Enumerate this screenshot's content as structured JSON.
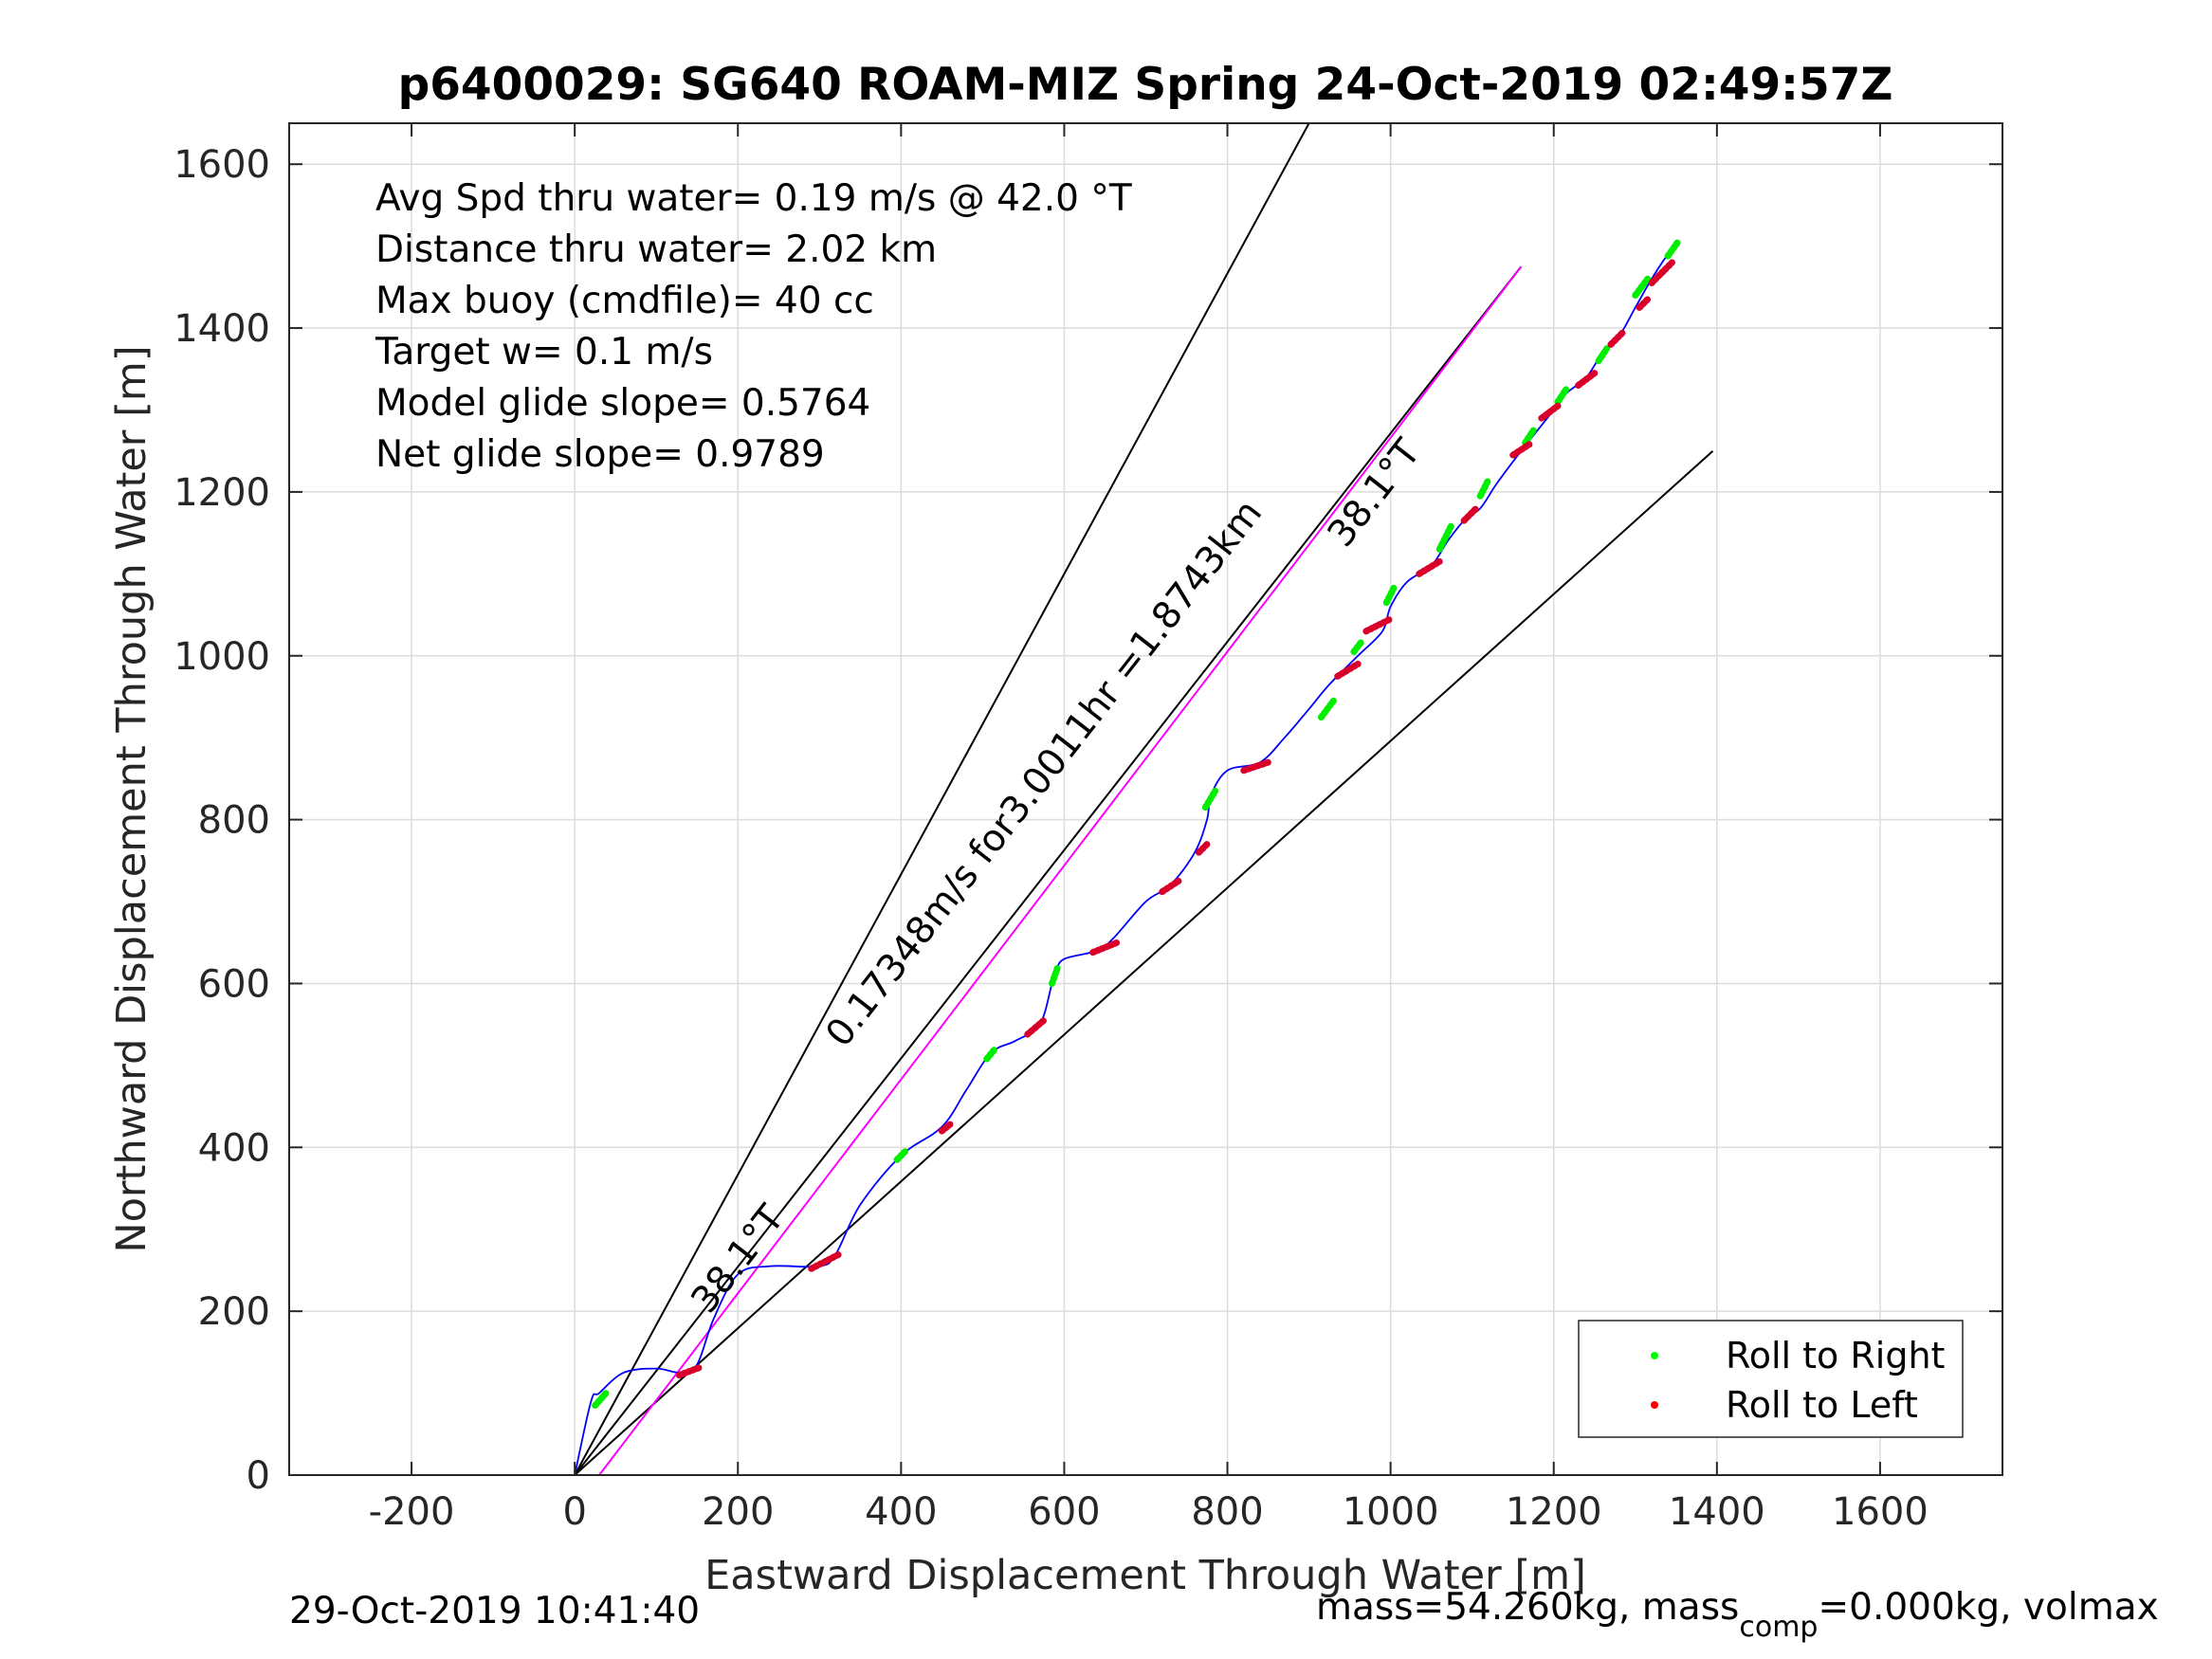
{
  "chart_data": {
    "type": "line",
    "title": "p6400029: SG640 ROAM-MIZ Spring 24-Oct-2019 02:49:57Z",
    "xlabel": "Eastward Displacement Through Water [m]",
    "ylabel": "Northward Displacement Through Water [m]",
    "xlim": [
      -350,
      1750
    ],
    "ylim": [
      0,
      1650
    ],
    "xticks": [
      -200,
      0,
      200,
      400,
      600,
      800,
      1000,
      1200,
      1400,
      1600
    ],
    "yticks": [
      0,
      200,
      400,
      600,
      800,
      1000,
      1200,
      1400,
      1600
    ],
    "grid": true,
    "legend_position": "bottom-right",
    "info_lines": [
      "Avg Spd thru water=  0.19 m/s @  42.0 °T",
      "Distance thru water=  2.02 km",
      "Max buoy (cmdfile)= 40 cc",
      "Target w= 0.1 m/s",
      "Model glide slope= 0.5764",
      "Net glide slope= 0.9789"
    ],
    "reference_lines": [
      {
        "name": "upper-bound",
        "color": "#000000",
        "x": [
          0,
          900
        ],
        "y": [
          0,
          1650
        ]
      },
      {
        "name": "lower-bound",
        "color": "#000000",
        "x": [
          0,
          1395
        ],
        "y": [
          0,
          1250
        ]
      },
      {
        "name": "heading-line",
        "color": "#000000",
        "x": [
          0,
          1160
        ],
        "y": [
          0,
          1475
        ]
      },
      {
        "name": "magenta-track",
        "color": "#ff00ff",
        "x": [
          30,
          1160
        ],
        "y": [
          0,
          1475
        ]
      }
    ],
    "annotations": [
      {
        "text": "38.1°T",
        "x": 945,
        "y": 1130,
        "angle": 52
      },
      {
        "text": "0.17348m/s for3.0011hr =1.8743km",
        "x": 330,
        "y": 520,
        "angle": 52
      },
      {
        "text": "38.1°T",
        "x": 165,
        "y": 195,
        "angle": 52
      }
    ],
    "series": [
      {
        "name": "",
        "color": "#0000ff",
        "x": [
          0,
          20,
          30,
          60,
          100,
          130,
          150,
          170,
          200,
          240,
          300,
          320,
          350,
          400,
          450,
          480,
          510,
          540,
          570,
          585,
          590,
          600,
          640,
          660,
          700,
          730,
          760,
          775,
          780,
          800,
          840,
          870,
          900,
          925,
          960,
          990,
          1000,
          1020,
          1050,
          1070,
          1090,
          1110,
          1130,
          1160,
          1180,
          1200,
          1215,
          1240,
          1260,
          1280,
          1300,
          1320,
          1340,
          1355
        ],
        "y": [
          0,
          90,
          100,
          125,
          130,
          125,
          135,
          190,
          245,
          255,
          255,
          270,
          330,
          390,
          425,
          470,
          515,
          530,
          550,
          600,
          615,
          630,
          640,
          655,
          700,
          720,
          760,
          800,
          830,
          860,
          870,
          900,
          935,
          965,
          1000,
          1030,
          1060,
          1090,
          1110,
          1140,
          1165,
          1180,
          1210,
          1250,
          1275,
          1300,
          1320,
          1340,
          1370,
          1390,
          1425,
          1460,
          1490,
          1505
        ]
      }
    ],
    "legend": [
      {
        "label": "Roll to Right",
        "color": "#00ff00"
      },
      {
        "label": "Roll to Left",
        "color": "#ff0000"
      }
    ],
    "roll_right_segments": [
      [
        [
          25,
          85
        ],
        [
          40,
          102
        ]
      ],
      [
        [
          395,
          385
        ],
        [
          405,
          395
        ]
      ],
      [
        [
          505,
          508
        ],
        [
          515,
          520
        ]
      ],
      [
        [
          585,
          600
        ],
        [
          592,
          620
        ]
      ],
      [
        [
          773,
          815
        ],
        [
          785,
          835
        ]
      ],
      [
        [
          915,
          925
        ],
        [
          930,
          945
        ]
      ],
      [
        [
          955,
          1005
        ],
        [
          965,
          1018
        ]
      ],
      [
        [
          995,
          1065
        ],
        [
          1005,
          1085
        ]
      ],
      [
        [
          1060,
          1130
        ],
        [
          1075,
          1160
        ]
      ],
      [
        [
          1110,
          1195
        ],
        [
          1120,
          1215
        ]
      ],
      [
        [
          1165,
          1260
        ],
        [
          1175,
          1275
        ]
      ],
      [
        [
          1205,
          1310
        ],
        [
          1215,
          1325
        ]
      ],
      [
        [
          1255,
          1360
        ],
        [
          1265,
          1375
        ]
      ],
      [
        [
          1300,
          1440
        ],
        [
          1315,
          1460
        ]
      ],
      [
        [
          1340,
          1488
        ],
        [
          1352,
          1505
        ]
      ]
    ],
    "roll_left_segments": [
      [
        [
          128,
          122
        ],
        [
          155,
          132
        ]
      ],
      [
        [
          290,
          252
        ],
        [
          325,
          270
        ]
      ],
      [
        [
          450,
          420
        ],
        [
          460,
          428
        ]
      ],
      [
        [
          555,
          538
        ],
        [
          575,
          555
        ]
      ],
      [
        [
          635,
          638
        ],
        [
          665,
          650
        ]
      ],
      [
        [
          720,
          712
        ],
        [
          740,
          725
        ]
      ],
      [
        [
          765,
          760
        ],
        [
          775,
          770
        ]
      ],
      [
        [
          820,
          860
        ],
        [
          850,
          870
        ]
      ],
      [
        [
          935,
          975
        ],
        [
          960,
          990
        ]
      ],
      [
        [
          970,
          1030
        ],
        [
          1000,
          1045
        ]
      ],
      [
        [
          1035,
          1100
        ],
        [
          1060,
          1115
        ]
      ],
      [
        [
          1090,
          1165
        ],
        [
          1105,
          1180
        ]
      ],
      [
        [
          1150,
          1245
        ],
        [
          1170,
          1258
        ]
      ],
      [
        [
          1185,
          1290
        ],
        [
          1205,
          1305
        ]
      ],
      [
        [
          1230,
          1330
        ],
        [
          1250,
          1345
        ]
      ],
      [
        [
          1270,
          1380
        ],
        [
          1285,
          1395
        ]
      ],
      [
        [
          1305,
          1425
        ],
        [
          1315,
          1435
        ]
      ],
      [
        [
          1320,
          1455
        ],
        [
          1345,
          1480
        ]
      ]
    ]
  },
  "footer": {
    "timestamp": "29-Oct-2019 10:41:40",
    "mass_prefix": "mass=54.260kg, mass",
    "mass_sub": "comp",
    "mass_suffix": "=0.000kg, volmax"
  }
}
